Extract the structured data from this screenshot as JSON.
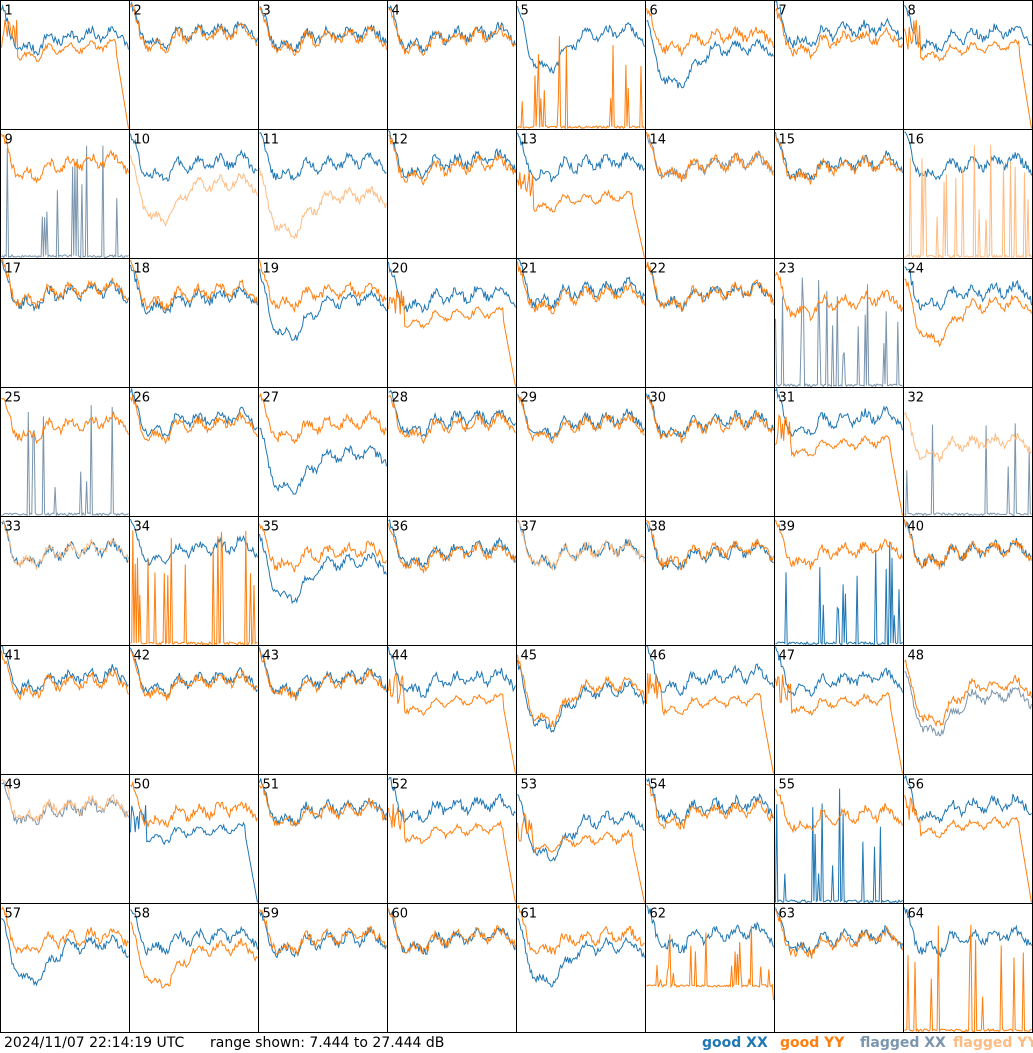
{
  "footer": {
    "timestamp": "2024/11/07 22:14:19 UTC",
    "range_text": "range shown: 7.444 to 27.444 dB"
  },
  "legend": {
    "good_xx": "good XX",
    "good_yy": "good YY",
    "flagged_xx": "flagged XX",
    "flagged_yy": "flagged YY"
  },
  "colors": {
    "good_xx": "#1f77b4",
    "good_yy": "#ff7f0e",
    "flagged_xx": "#7a95ad",
    "flagged_yy": "#ffbb80",
    "grid": "#000000",
    "background": "#ffffff"
  },
  "chart_data": {
    "type": "line",
    "layout": "small-multiples 8x8",
    "y_unit": "dB",
    "ylim": [
      7.444,
      27.444
    ],
    "tiles": [
      {
        "n": "1",
        "xx": {
          "s": "good",
          "shape": "normal",
          "level": 0.7
        },
        "yy": {
          "s": "good",
          "shape": "dropend",
          "level": 0.62
        }
      },
      {
        "n": "2",
        "xx": {
          "s": "good",
          "shape": "normal",
          "level": 0.74
        },
        "yy": {
          "s": "good",
          "shape": "normal",
          "level": 0.72
        }
      },
      {
        "n": "3",
        "xx": {
          "s": "good",
          "shape": "normal",
          "level": 0.72
        },
        "yy": {
          "s": "good",
          "shape": "normal",
          "level": 0.7
        }
      },
      {
        "n": "4",
        "xx": {
          "s": "good",
          "shape": "normal",
          "level": 0.72
        },
        "yy": {
          "s": "good",
          "shape": "normal",
          "level": 0.7
        }
      },
      {
        "n": "5",
        "xx": {
          "s": "good",
          "shape": "dip",
          "level": 0.72
        },
        "yy": {
          "s": "good",
          "shape": "spikes",
          "level": 0.0
        }
      },
      {
        "n": "6",
        "xx": {
          "s": "good",
          "shape": "dip",
          "level": 0.6
        },
        "yy": {
          "s": "good",
          "shape": "normal",
          "level": 0.7
        }
      },
      {
        "n": "7",
        "xx": {
          "s": "good",
          "shape": "normal",
          "level": 0.75
        },
        "yy": {
          "s": "good",
          "shape": "normal",
          "level": 0.68
        }
      },
      {
        "n": "8",
        "xx": {
          "s": "good",
          "shape": "normal",
          "level": 0.72
        },
        "yy": {
          "s": "good",
          "shape": "dropend",
          "level": 0.62
        }
      },
      {
        "n": "9",
        "xx": {
          "s": "flagged",
          "shape": "spikes",
          "level": 0.0
        },
        "yy": {
          "s": "good",
          "shape": "normal",
          "level": 0.72
        }
      },
      {
        "n": "10",
        "xx": {
          "s": "good",
          "shape": "normal",
          "level": 0.72
        },
        "yy": {
          "s": "flagged",
          "shape": "dip",
          "level": 0.55
        }
      },
      {
        "n": "11",
        "xx": {
          "s": "good",
          "shape": "normal",
          "level": 0.72
        },
        "yy": {
          "s": "flagged",
          "shape": "dip",
          "level": 0.45
        }
      },
      {
        "n": "12",
        "xx": {
          "s": "good",
          "shape": "normal",
          "level": 0.74
        },
        "yy": {
          "s": "good",
          "shape": "normal",
          "level": 0.7
        }
      },
      {
        "n": "13",
        "xx": {
          "s": "good",
          "shape": "normal",
          "level": 0.72
        },
        "yy": {
          "s": "good",
          "shape": "dropend",
          "level": 0.45
        }
      },
      {
        "n": "14",
        "xx": {
          "s": "flagged",
          "shape": "normal",
          "level": 0.72
        },
        "yy": {
          "s": "good",
          "shape": "normal",
          "level": 0.72
        }
      },
      {
        "n": "15",
        "xx": {
          "s": "good",
          "shape": "normal",
          "level": 0.72
        },
        "yy": {
          "s": "good",
          "shape": "normal",
          "level": 0.7
        }
      },
      {
        "n": "16",
        "xx": {
          "s": "good",
          "shape": "normal",
          "level": 0.72
        },
        "yy": {
          "s": "flagged",
          "shape": "spikes",
          "level": 0.0
        }
      },
      {
        "n": "17",
        "xx": {
          "s": "good",
          "shape": "normal",
          "level": 0.72
        },
        "yy": {
          "s": "good",
          "shape": "normal",
          "level": 0.74
        }
      },
      {
        "n": "18",
        "xx": {
          "s": "good",
          "shape": "normal",
          "level": 0.68
        },
        "yy": {
          "s": "good",
          "shape": "normal",
          "level": 0.72
        }
      },
      {
        "n": "19",
        "xx": {
          "s": "good",
          "shape": "dip",
          "level": 0.65
        },
        "yy": {
          "s": "good",
          "shape": "normal",
          "level": 0.72
        }
      },
      {
        "n": "20",
        "xx": {
          "s": "good",
          "shape": "normal",
          "level": 0.7
        },
        "yy": {
          "s": "good",
          "shape": "dropend",
          "level": 0.55
        }
      },
      {
        "n": "21",
        "xx": {
          "s": "good",
          "shape": "normal",
          "level": 0.74
        },
        "yy": {
          "s": "good",
          "shape": "normal",
          "level": 0.7
        }
      },
      {
        "n": "22",
        "xx": {
          "s": "good",
          "shape": "normal",
          "level": 0.72
        },
        "yy": {
          "s": "good",
          "shape": "normal",
          "level": 0.72
        }
      },
      {
        "n": "23",
        "xx": {
          "s": "flagged",
          "shape": "spikes",
          "level": 0.0
        },
        "yy": {
          "s": "good",
          "shape": "normal",
          "level": 0.65
        }
      },
      {
        "n": "24",
        "xx": {
          "s": "good",
          "shape": "normal",
          "level": 0.72
        },
        "yy": {
          "s": "good",
          "shape": "dip",
          "level": 0.62
        }
      },
      {
        "n": "25",
        "xx": {
          "s": "flagged",
          "shape": "spikes",
          "level": 0.0
        },
        "yy": {
          "s": "good",
          "shape": "normal",
          "level": 0.7
        }
      },
      {
        "n": "26",
        "xx": {
          "s": "good",
          "shape": "normal",
          "level": 0.74
        },
        "yy": {
          "s": "good",
          "shape": "normal",
          "level": 0.7
        }
      },
      {
        "n": "27",
        "xx": {
          "s": "good",
          "shape": "dip",
          "level": 0.45
        },
        "yy": {
          "s": "good",
          "shape": "normal",
          "level": 0.7
        }
      },
      {
        "n": "28",
        "xx": {
          "s": "good",
          "shape": "normal",
          "level": 0.74
        },
        "yy": {
          "s": "good",
          "shape": "normal",
          "level": 0.7
        }
      },
      {
        "n": "29",
        "xx": {
          "s": "good",
          "shape": "normal",
          "level": 0.72
        },
        "yy": {
          "s": "good",
          "shape": "normal",
          "level": 0.7
        }
      },
      {
        "n": "30",
        "xx": {
          "s": "good",
          "shape": "normal",
          "level": 0.72
        },
        "yy": {
          "s": "good",
          "shape": "normal",
          "level": 0.7
        }
      },
      {
        "n": "31",
        "xx": {
          "s": "good",
          "shape": "normal",
          "level": 0.74
        },
        "yy": {
          "s": "good",
          "shape": "dropend",
          "level": 0.55
        }
      },
      {
        "n": "32",
        "xx": {
          "s": "flagged",
          "shape": "spikes",
          "level": 0.0
        },
        "yy": {
          "s": "flagged",
          "shape": "normal",
          "level": 0.55
        }
      },
      {
        "n": "33",
        "xx": {
          "s": "good",
          "shape": "normal",
          "level": 0.72
        },
        "yy": {
          "s": "flagged",
          "shape": "normal",
          "level": 0.72
        }
      },
      {
        "n": "34",
        "xx": {
          "s": "good",
          "shape": "normal",
          "level": 0.74
        },
        "yy": {
          "s": "good",
          "shape": "spikes",
          "level": 0.0
        }
      },
      {
        "n": "35",
        "xx": {
          "s": "good",
          "shape": "dip",
          "level": 0.62
        },
        "yy": {
          "s": "good",
          "shape": "normal",
          "level": 0.7
        }
      },
      {
        "n": "36",
        "xx": {
          "s": "good",
          "shape": "normal",
          "level": 0.72
        },
        "yy": {
          "s": "good",
          "shape": "normal",
          "level": 0.7
        }
      },
      {
        "n": "37",
        "xx": {
          "s": "good",
          "shape": "normal",
          "level": 0.72
        },
        "yy": {
          "s": "flagged",
          "shape": "normal",
          "level": 0.72
        }
      },
      {
        "n": "38",
        "xx": {
          "s": "good",
          "shape": "normal",
          "level": 0.7
        },
        "yy": {
          "s": "good",
          "shape": "normal",
          "level": 0.72
        }
      },
      {
        "n": "39",
        "xx": {
          "s": "good",
          "shape": "spikes",
          "level": 0.0
        },
        "yy": {
          "s": "good",
          "shape": "normal",
          "level": 0.72
        }
      },
      {
        "n": "40",
        "xx": {
          "s": "good",
          "shape": "normal",
          "level": 0.72
        },
        "yy": {
          "s": "good",
          "shape": "normal",
          "level": 0.72
        }
      },
      {
        "n": "41",
        "xx": {
          "s": "good",
          "shape": "normal",
          "level": 0.74
        },
        "yy": {
          "s": "good",
          "shape": "normal",
          "level": 0.7
        }
      },
      {
        "n": "42",
        "xx": {
          "s": "good",
          "shape": "normal",
          "level": 0.72
        },
        "yy": {
          "s": "good",
          "shape": "normal",
          "level": 0.7
        }
      },
      {
        "n": "43",
        "xx": {
          "s": "good",
          "shape": "normal",
          "level": 0.72
        },
        "yy": {
          "s": "good",
          "shape": "normal",
          "level": 0.7
        }
      },
      {
        "n": "44",
        "xx": {
          "s": "good",
          "shape": "normal",
          "level": 0.72
        },
        "yy": {
          "s": "good",
          "shape": "dropend",
          "level": 0.55
        }
      },
      {
        "n": "45",
        "xx": {
          "s": "good",
          "shape": "dip",
          "level": 0.62
        },
        "yy": {
          "s": "good",
          "shape": "dip",
          "level": 0.66
        }
      },
      {
        "n": "46",
        "xx": {
          "s": "good",
          "shape": "normal",
          "level": 0.74
        },
        "yy": {
          "s": "good",
          "shape": "dropend",
          "level": 0.55
        }
      },
      {
        "n": "47",
        "xx": {
          "s": "good",
          "shape": "normal",
          "level": 0.72
        },
        "yy": {
          "s": "good",
          "shape": "dropend",
          "level": 0.55
        }
      },
      {
        "n": "48",
        "xx": {
          "s": "flagged",
          "shape": "dip",
          "level": 0.58
        },
        "yy": {
          "s": "good",
          "shape": "dip",
          "level": 0.66
        }
      },
      {
        "n": "49",
        "xx": {
          "s": "flagged",
          "shape": "normal",
          "level": 0.72
        },
        "yy": {
          "s": "flagged",
          "shape": "normal",
          "level": 0.74
        }
      },
      {
        "n": "50",
        "xx": {
          "s": "good",
          "shape": "dropend",
          "level": 0.55
        },
        "yy": {
          "s": "good",
          "shape": "normal",
          "level": 0.7
        }
      },
      {
        "n": "51",
        "xx": {
          "s": "good",
          "shape": "normal",
          "level": 0.72
        },
        "yy": {
          "s": "good",
          "shape": "normal",
          "level": 0.7
        }
      },
      {
        "n": "52",
        "xx": {
          "s": "good",
          "shape": "normal",
          "level": 0.74
        },
        "yy": {
          "s": "good",
          "shape": "dropend",
          "level": 0.55
        }
      },
      {
        "n": "53",
        "xx": {
          "s": "good",
          "shape": "dip",
          "level": 0.62
        },
        "yy": {
          "s": "good",
          "shape": "dropend",
          "level": 0.48
        }
      },
      {
        "n": "54",
        "xx": {
          "s": "good",
          "shape": "normal",
          "level": 0.74
        },
        "yy": {
          "s": "good",
          "shape": "normal",
          "level": 0.7
        }
      },
      {
        "n": "55",
        "xx": {
          "s": "good",
          "shape": "spikes",
          "level": 0.0
        },
        "yy": {
          "s": "good",
          "shape": "normal",
          "level": 0.66
        }
      },
      {
        "n": "56",
        "xx": {
          "s": "good",
          "shape": "normal",
          "level": 0.74
        },
        "yy": {
          "s": "good",
          "shape": "dropend",
          "level": 0.6
        }
      },
      {
        "n": "57",
        "xx": {
          "s": "good",
          "shape": "dip",
          "level": 0.65
        },
        "yy": {
          "s": "good",
          "shape": "normal",
          "level": 0.72
        }
      },
      {
        "n": "58",
        "xx": {
          "s": "good",
          "shape": "normal",
          "level": 0.72
        },
        "yy": {
          "s": "good",
          "shape": "dip",
          "level": 0.62
        }
      },
      {
        "n": "59",
        "xx": {
          "s": "good",
          "shape": "normal",
          "level": 0.7
        },
        "yy": {
          "s": "good",
          "shape": "normal",
          "level": 0.72
        }
      },
      {
        "n": "60",
        "xx": {
          "s": "good",
          "shape": "normal",
          "level": 0.72
        },
        "yy": {
          "s": "good",
          "shape": "normal",
          "level": 0.72
        }
      },
      {
        "n": "61",
        "xx": {
          "s": "good",
          "shape": "dip",
          "level": 0.64
        },
        "yy": {
          "s": "good",
          "shape": "normal",
          "level": 0.72
        }
      },
      {
        "n": "62",
        "xx": {
          "s": "good",
          "shape": "normal",
          "level": 0.74
        },
        "yy": {
          "s": "good",
          "shape": "spikes",
          "level": 0.35
        }
      },
      {
        "n": "63",
        "xx": {
          "s": "good",
          "shape": "normal",
          "level": 0.72
        },
        "yy": {
          "s": "good",
          "shape": "normal",
          "level": 0.7
        }
      },
      {
        "n": "64",
        "xx": {
          "s": "good",
          "shape": "normal",
          "level": 0.72
        },
        "yy": {
          "s": "good",
          "shape": "spikes",
          "level": 0.0
        }
      }
    ]
  }
}
